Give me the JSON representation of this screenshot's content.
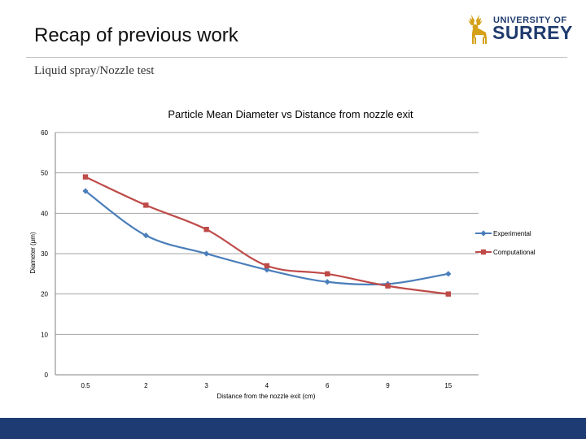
{
  "slide": {
    "title": "Recap of previous work",
    "subtitle": "Liquid spray/Nozzle test"
  },
  "logo": {
    "line1": "UNIVERSITY OF",
    "line2": "SURREY",
    "icon": "stag-icon",
    "color": "#1f3b6e",
    "stag_color": "#d4a017"
  },
  "chart_data": {
    "type": "line",
    "title": "Particle Mean Diameter vs Distance from nozzle exit",
    "xlabel": "Distance from the nozzle exit (cm)",
    "ylabel": "Diameter (μm)",
    "categories": [
      "0.5",
      "2",
      "3",
      "4",
      "6",
      "9",
      "15"
    ],
    "ylim": [
      0,
      60
    ],
    "yticks": [
      0,
      10,
      20,
      30,
      40,
      50,
      60
    ],
    "grid": true,
    "legend_position": "right",
    "series": [
      {
        "name": "Experimental",
        "color": "#4a7ebb",
        "marker": "diamond",
        "values": [
          45.5,
          34.5,
          30,
          26,
          23,
          22.5,
          25
        ]
      },
      {
        "name": "Computational",
        "color": "#be4b48",
        "marker": "square",
        "values": [
          49,
          42,
          36,
          27,
          25,
          22,
          20
        ]
      }
    ]
  },
  "theme": {
    "bottom_bar_color": "#1f3b73"
  }
}
